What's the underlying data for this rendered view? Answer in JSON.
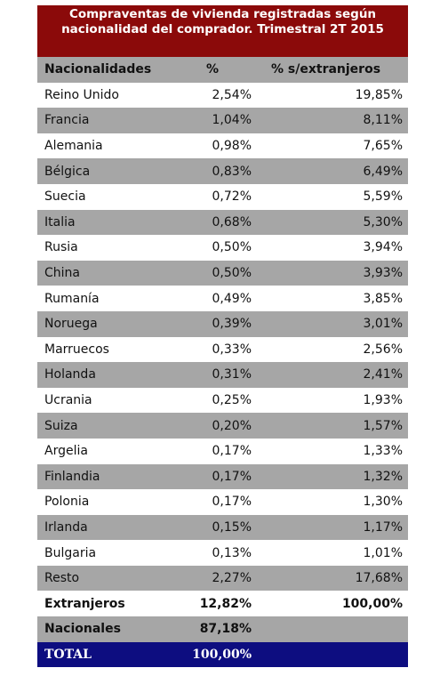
{
  "chart_data": {
    "type": "table",
    "title": "Compraventas de vivienda registradas según nacionalidad del comprador. Trimestral 2T 2015",
    "columns": [
      "Nacionalidades",
      "%",
      "% s/extranjeros"
    ],
    "rows": [
      {
        "name": "Reino Unido",
        "pct": "2,54%",
        "pct_ext": "19,85%"
      },
      {
        "name": "Francia",
        "pct": "1,04%",
        "pct_ext": "8,11%"
      },
      {
        "name": "Alemania",
        "pct": "0,98%",
        "pct_ext": "7,65%"
      },
      {
        "name": "Bélgica",
        "pct": "0,83%",
        "pct_ext": "6,49%"
      },
      {
        "name": "Suecia",
        "pct": "0,72%",
        "pct_ext": "5,59%"
      },
      {
        "name": "Italia",
        "pct": "0,68%",
        "pct_ext": "5,30%"
      },
      {
        "name": "Rusia",
        "pct": "0,50%",
        "pct_ext": "3,94%"
      },
      {
        "name": "China",
        "pct": "0,50%",
        "pct_ext": "3,93%"
      },
      {
        "name": "Rumanía",
        "pct": "0,49%",
        "pct_ext": "3,85%"
      },
      {
        "name": "Noruega",
        "pct": "0,39%",
        "pct_ext": "3,01%"
      },
      {
        "name": "Marruecos",
        "pct": "0,33%",
        "pct_ext": "2,56%"
      },
      {
        "name": "Holanda",
        "pct": "0,31%",
        "pct_ext": "2,41%"
      },
      {
        "name": "Ucrania",
        "pct": "0,25%",
        "pct_ext": "1,93%"
      },
      {
        "name": "Suiza",
        "pct": "0,20%",
        "pct_ext": "1,57%"
      },
      {
        "name": "Argelia",
        "pct": "0,17%",
        "pct_ext": "1,33%"
      },
      {
        "name": "Finlandia",
        "pct": "0,17%",
        "pct_ext": "1,32%"
      },
      {
        "name": "Polonia",
        "pct": "0,17%",
        "pct_ext": "1,30%"
      },
      {
        "name": "Irlanda",
        "pct": "0,15%",
        "pct_ext": "1,17%"
      },
      {
        "name": "Bulgaria",
        "pct": "0,13%",
        "pct_ext": "1,01%"
      },
      {
        "name": "Resto",
        "pct": "2,27%",
        "pct_ext": "17,68%"
      }
    ],
    "summary": [
      {
        "name": "Extranjeros",
        "pct": "12,82%",
        "pct_ext": "100,00%"
      },
      {
        "name": "Nacionales",
        "pct": "87,18%",
        "pct_ext": ""
      },
      {
        "name": "TOTAL",
        "pct": "100,00%",
        "pct_ext": ""
      }
    ]
  },
  "colors": {
    "title_bg": "#8b0a0a",
    "header_bg": "#a6a6a6",
    "stripe_bg": "#a6a6a6",
    "total_bg": "#0d0d80"
  }
}
